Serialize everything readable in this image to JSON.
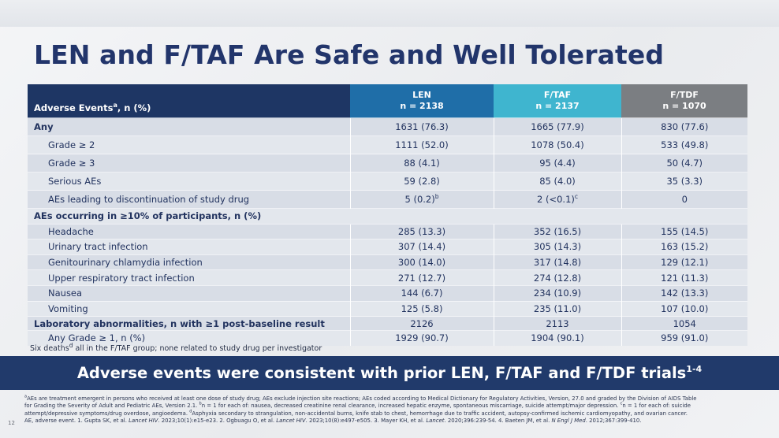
{
  "slide": {
    "title": "LEN and F/TAF Are Safe and Well Tolerated",
    "page_number": "12",
    "banner_text": "Adverse events were consistent with prior LEN, F/TAF and F/TDF trials",
    "banner_sup": "1-4"
  },
  "table": {
    "header": {
      "col0_label": "Adverse Events",
      "col0_sup": "a",
      "col0_suffix": ", n (%)",
      "len_name": "LEN",
      "len_n": "n = 2138",
      "ftaf_name": "F/TAF",
      "ftaf_n": "n = 2137",
      "ftdf_name": "F/TDF",
      "ftdf_n": "n = 1070"
    },
    "rows": [
      {
        "label": "Any",
        "len": "1631 (76.3)",
        "ftaf": "1665 (77.9)",
        "ftdf": "830 (77.6)"
      },
      {
        "label": "Grade ≥ 2",
        "len": "1111 (52.0)",
        "ftaf": "1078 (50.4)",
        "ftdf": "533 (49.8)"
      },
      {
        "label": "Grade ≥ 3",
        "len": "88 (4.1)",
        "ftaf": "95 (4.4)",
        "ftdf": "50 (4.7)"
      },
      {
        "label": "Serious AEs",
        "len": "59 (2.8)",
        "ftaf": "85 (4.0)",
        "ftdf": "35 (3.3)"
      },
      {
        "label": "AEs leading to discontinuation of study drug",
        "len": "5 (0.2)",
        "len_sup": "b",
        "ftaf": "2 (<0.1)",
        "ftaf_sup": "c",
        "ftdf": "0"
      },
      {
        "label": "AEs occurring in ≥10% of participants, n (%)"
      },
      {
        "label": "Headache",
        "len": "285 (13.3)",
        "ftaf": "352 (16.5)",
        "ftdf": "155 (14.5)"
      },
      {
        "label": "Urinary tract infection",
        "len": "307 (14.4)",
        "ftaf": "305 (14.3)",
        "ftdf": "163 (15.2)"
      },
      {
        "label": "Genitourinary chlamydia infection",
        "len": "300 (14.0)",
        "ftaf": "317 (14.8)",
        "ftdf": "129 (12.1)"
      },
      {
        "label": "Upper respiratory tract infection",
        "len": "271 (12.7)",
        "ftaf": "274 (12.8)",
        "ftdf": "121 (11.3)"
      },
      {
        "label": "Nausea",
        "len": "144 (6.7)",
        "ftaf": "234 (10.9)",
        "ftdf": "142 (13.3)"
      },
      {
        "label": "Vomiting",
        "len": "125 (5.8)",
        "ftaf": "235 (11.0)",
        "ftdf": "107 (10.0)"
      },
      {
        "label": "Laboratory abnormalities, n with ≥1 post-baseline result",
        "len": "2126",
        "ftaf": "2113",
        "ftdf": "1054"
      },
      {
        "label": "Any Grade ≥ 1, n (%)",
        "len": "1929 (90.7)",
        "ftaf": "1904 (90.1)",
        "ftdf": "959 (91.0)"
      }
    ]
  },
  "note": {
    "prefix": "Six deaths",
    "sup": "d",
    "suffix": " all in the F/TAF group; none related to study drug per investigator"
  },
  "footnotes": {
    "line1": "AEs are treatment emergent in persons who received at least one dose of study drug; AEs exclude injection site reactions; AEs coded according to Medical Dictionary for Regulatory Activities, Version, 27.0 and graded by the Division of AIDS Table",
    "line2": "for Grading the Severity of Adult and Pediatric AEs, Version 2.1. ",
    "line2b": "n = 1 for each of: nausea, decreased creatinine renal clearance, increased hepatic enzyme, spontaneous miscarriage, suicide attempt/major depression. ",
    "line2c": "n = 1 for each of: suicide",
    "line3": "attempt/depressive symptoms/drug overdose, angioedema. ",
    "line3b": "Asphyxia secondary to strangulation, non-accidental burns, knife stab to chest, hemorrhage due to traffic accident, autopsy-confirmed ischemic cardiomyopathy, and ovarian cancer.",
    "line4": "AE, adverse event. 1. Gupta SK, et al. ",
    "j1": "Lancet HIV",
    "r1": ". 2023;10(1):e15-e23. 2. Ogbuagu O, et al. ",
    "j2": "Lancet HIV",
    "r2": ". 2023;10(8):e497-e505. 3. Mayer KH, et al. ",
    "j3": "Lancet",
    "r3": ". 2020;396:239-54. 4. Baeten JM, et al. ",
    "j4": "N Engl J Med",
    "r4": ". 2012;367:399-410.",
    "sup_a": "a",
    "sup_b": "b",
    "sup_c": "c",
    "sup_d": "d"
  }
}
